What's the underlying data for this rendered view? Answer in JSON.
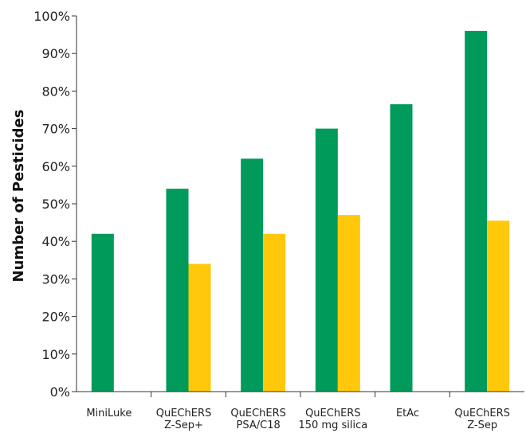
{
  "chart_data": {
    "type": "bar",
    "title": "",
    "xlabel": "",
    "ylabel": "Number of  Pesticides",
    "ylim": [
      0,
      100
    ],
    "y_ticks": [
      "0%",
      "10%",
      "20%",
      "30%",
      "40%",
      "50%",
      "60%",
      "70%",
      "80%",
      "90%",
      "100%"
    ],
    "grid": false,
    "categories": [
      [
        "MiniLuke"
      ],
      [
        "QuEChERS",
        "Z-Sep+"
      ],
      [
        "QuEChERS",
        "PSA/C18"
      ],
      [
        "QuEChERS",
        "150 mg silica"
      ],
      [
        "EtAc"
      ],
      [
        "QuEChERS",
        "Z-Sep"
      ]
    ],
    "series": [
      {
        "color": "#009a5a",
        "values": [
          42,
          54,
          62,
          70,
          76.5,
          96
        ]
      },
      {
        "color": "#ffc80a",
        "values": [
          null,
          34,
          42,
          47,
          null,
          45.5
        ]
      }
    ]
  }
}
